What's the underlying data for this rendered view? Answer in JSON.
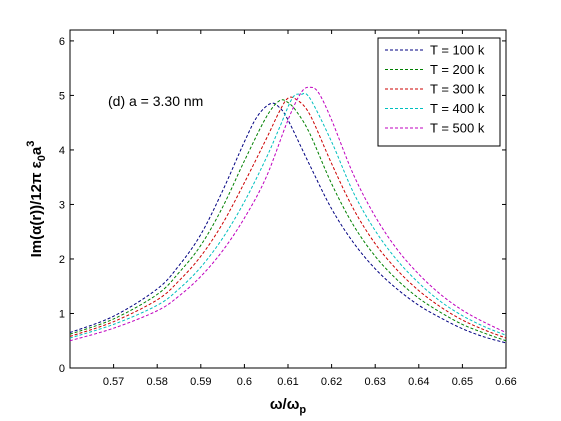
{
  "chart_data": {
    "type": "line",
    "title": "",
    "xlabel": "ω/ω",
    "xlabel_sub": "p",
    "ylabel": "Im(α(r))/12π ε",
    "ylabel_sub": "0",
    "ylabel_tail": "a",
    "ylabel_sup": "3",
    "xlim": [
      0.56,
      0.66
    ],
    "ylim": [
      0,
      6.2
    ],
    "xticks": [
      0.57,
      0.58,
      0.59,
      0.6,
      0.61,
      0.62,
      0.63,
      0.64,
      0.65,
      0.66
    ],
    "xtick_labels": [
      "0.57",
      "0.58",
      "0.59",
      "0.6",
      "0.61",
      "0.62",
      "0.63",
      "0.64",
      "0.65",
      "0.66"
    ],
    "yticks": [
      0,
      1,
      2,
      3,
      4,
      5,
      6
    ],
    "ytick_labels": [
      "0",
      "1",
      "2",
      "3",
      "4",
      "5",
      "6"
    ],
    "grid": false,
    "legend_position": "top-right",
    "annotation": "(d) a = 3.30 nm",
    "series": [
      {
        "name": "T = 100 k",
        "color": "#000080",
        "x": [
          0.56,
          0.57,
          0.58,
          0.585,
          0.59,
          0.595,
          0.6,
          0.603,
          0.606,
          0.608,
          0.61,
          0.615,
          0.62,
          0.625,
          0.63,
          0.635,
          0.64,
          0.645,
          0.65,
          0.655,
          0.66
        ],
        "y": [
          0.65,
          0.95,
          1.45,
          1.88,
          2.45,
          3.25,
          4.15,
          4.62,
          4.85,
          4.78,
          4.55,
          3.72,
          2.92,
          2.3,
          1.82,
          1.45,
          1.15,
          0.92,
          0.72,
          0.57,
          0.46
        ]
      },
      {
        "name": "T = 200 k",
        "color": "#008000",
        "x": [
          0.56,
          0.57,
          0.58,
          0.585,
          0.59,
          0.595,
          0.6,
          0.605,
          0.608,
          0.61,
          0.612,
          0.615,
          0.62,
          0.625,
          0.63,
          0.635,
          0.64,
          0.645,
          0.65,
          0.655,
          0.66
        ],
        "y": [
          0.62,
          0.9,
          1.35,
          1.75,
          2.25,
          2.95,
          3.8,
          4.6,
          4.9,
          4.87,
          4.7,
          4.3,
          3.38,
          2.62,
          2.05,
          1.62,
          1.28,
          1.02,
          0.8,
          0.64,
          0.5
        ]
      },
      {
        "name": "T = 300 k",
        "color": "#cc0000",
        "x": [
          0.56,
          0.57,
          0.58,
          0.585,
          0.59,
          0.595,
          0.6,
          0.605,
          0.608,
          0.61,
          0.612,
          0.615,
          0.62,
          0.625,
          0.63,
          0.635,
          0.64,
          0.645,
          0.65,
          0.655,
          0.66
        ],
        "y": [
          0.58,
          0.85,
          1.25,
          1.6,
          2.05,
          2.65,
          3.4,
          4.2,
          4.7,
          4.95,
          4.92,
          4.65,
          3.75,
          2.92,
          2.28,
          1.8,
          1.42,
          1.12,
          0.88,
          0.7,
          0.55
        ]
      },
      {
        "name": "T = 400 k",
        "color": "#00bfbf",
        "x": [
          0.56,
          0.57,
          0.58,
          0.585,
          0.59,
          0.595,
          0.6,
          0.605,
          0.608,
          0.611,
          0.613,
          0.615,
          0.62,
          0.625,
          0.63,
          0.635,
          0.64,
          0.645,
          0.65,
          0.655,
          0.66
        ],
        "y": [
          0.55,
          0.8,
          1.15,
          1.45,
          1.85,
          2.38,
          3.05,
          3.85,
          4.4,
          4.95,
          5.02,
          4.95,
          4.15,
          3.22,
          2.52,
          1.98,
          1.56,
          1.22,
          0.96,
          0.76,
          0.6
        ]
      },
      {
        "name": "T = 500 k",
        "color": "#bf00bf",
        "x": [
          0.56,
          0.57,
          0.58,
          0.585,
          0.59,
          0.595,
          0.6,
          0.605,
          0.61,
          0.613,
          0.615,
          0.617,
          0.62,
          0.625,
          0.63,
          0.635,
          0.64,
          0.645,
          0.65,
          0.655,
          0.66
        ],
        "y": [
          0.5,
          0.73,
          1.05,
          1.32,
          1.68,
          2.15,
          2.75,
          3.5,
          4.55,
          5.05,
          5.15,
          5.05,
          4.55,
          3.55,
          2.78,
          2.18,
          1.72,
          1.35,
          1.06,
          0.84,
          0.65
        ]
      }
    ]
  }
}
